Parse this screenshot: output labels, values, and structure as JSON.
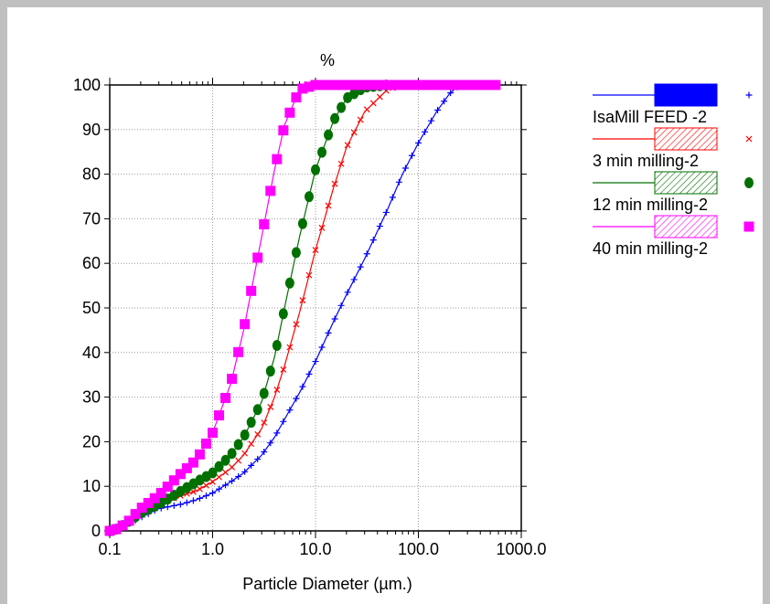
{
  "chart_data": {
    "type": "line",
    "title": "%",
    "xlabel": "Particle Diameter (µm.)",
    "ylabel": "",
    "x_scale": "log",
    "xlim": [
      0.1,
      1000
    ],
    "ylim": [
      0,
      100
    ],
    "x_ticks": [
      "0.1",
      "1.0",
      "10.0",
      "100.0",
      "1000.0"
    ],
    "y_ticks": [
      "0",
      "10",
      "20",
      "30",
      "40",
      "50",
      "60",
      "70",
      "80",
      "90",
      "100"
    ],
    "grid": true,
    "legend_position": "right",
    "series": [
      {
        "name": "IsaMill FEED -2",
        "color": "#0000ff",
        "marker": "plus",
        "points": [
          [
            0.1,
            0
          ],
          [
            0.12,
            0.5
          ],
          [
            0.15,
            1.5
          ],
          [
            0.2,
            3
          ],
          [
            0.3,
            5
          ],
          [
            0.5,
            6
          ],
          [
            0.7,
            7
          ],
          [
            1.0,
            8.5
          ],
          [
            1.5,
            11
          ],
          [
            2.0,
            13
          ],
          [
            3.0,
            17
          ],
          [
            4.0,
            21
          ],
          [
            5.0,
            25
          ],
          [
            7.0,
            31
          ],
          [
            10.0,
            38
          ],
          [
            15.0,
            47
          ],
          [
            20.0,
            53
          ],
          [
            30.0,
            61
          ],
          [
            50.0,
            72
          ],
          [
            70.0,
            80
          ],
          [
            100.0,
            87
          ],
          [
            150.0,
            94
          ],
          [
            200.0,
            98
          ],
          [
            250.0,
            100
          ]
        ]
      },
      {
        "name": "3 min milling-2",
        "color": "#ff0000",
        "marker": "x",
        "points": [
          [
            0.1,
            0
          ],
          [
            0.12,
            0.5
          ],
          [
            0.15,
            2
          ],
          [
            0.2,
            4
          ],
          [
            0.3,
            6
          ],
          [
            0.5,
            8
          ],
          [
            0.7,
            9
          ],
          [
            1.0,
            11
          ],
          [
            1.5,
            14
          ],
          [
            2.0,
            17
          ],
          [
            3.0,
            23
          ],
          [
            4.0,
            30
          ],
          [
            5.0,
            37
          ],
          [
            7.0,
            49
          ],
          [
            10.0,
            63
          ],
          [
            15.0,
            77
          ],
          [
            20.0,
            86
          ],
          [
            30.0,
            94
          ],
          [
            50.0,
            99
          ],
          [
            70.0,
            100
          ]
        ]
      },
      {
        "name": "12 min milling-2",
        "color": "#007000",
        "marker": "circle",
        "points": [
          [
            0.1,
            0
          ],
          [
            0.12,
            0.5
          ],
          [
            0.15,
            2
          ],
          [
            0.2,
            4
          ],
          [
            0.3,
            6
          ],
          [
            0.5,
            9
          ],
          [
            0.7,
            11
          ],
          [
            1.0,
            13
          ],
          [
            1.5,
            17
          ],
          [
            2.0,
            21
          ],
          [
            3.0,
            29
          ],
          [
            4.0,
            39
          ],
          [
            5.0,
            50
          ],
          [
            7.0,
            66
          ],
          [
            10.0,
            81
          ],
          [
            15.0,
            92
          ],
          [
            20.0,
            97
          ],
          [
            30.0,
            99.5
          ],
          [
            50.0,
            100
          ]
        ]
      },
      {
        "name": "40 min milling-2",
        "color": "#ff00ff",
        "marker": "square",
        "points": [
          [
            0.1,
            0
          ],
          [
            0.12,
            0.5
          ],
          [
            0.15,
            2
          ],
          [
            0.2,
            5
          ],
          [
            0.3,
            8
          ],
          [
            0.5,
            13
          ],
          [
            0.7,
            16
          ],
          [
            1.0,
            22
          ],
          [
            1.5,
            33
          ],
          [
            2.0,
            45
          ],
          [
            3.0,
            66
          ],
          [
            4.0,
            81
          ],
          [
            5.0,
            91
          ],
          [
            7.0,
            99
          ],
          [
            10.0,
            100
          ],
          [
            20.0,
            100
          ],
          [
            50.0,
            100
          ],
          [
            100.0,
            100
          ],
          [
            200.0,
            100
          ],
          [
            400.0,
            100
          ],
          [
            600.0,
            100
          ]
        ]
      }
    ]
  }
}
